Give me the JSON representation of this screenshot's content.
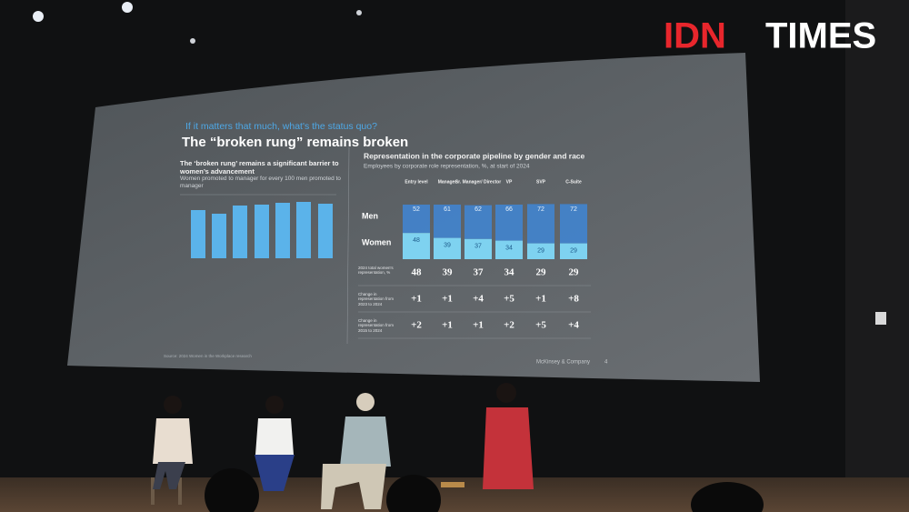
{
  "logo": {
    "brand": "IDN",
    "name": "TIMES"
  },
  "slide": {
    "kicker": "If it matters that much, what's the status quo?",
    "title": "The “broken rung” remains broken",
    "left": {
      "heading": "The ‘broken rung’ remains a significant barrier to women’s advancement",
      "subheading": "Women promoted to manager for every 100 men promoted to manager"
    },
    "right": {
      "heading": "Representation in the corporate pipeline by gender and race",
      "subheading": "Employees by corporate role representation, %, at start of 2024",
      "columns": [
        "Entry level",
        "Manager",
        "Sr. Manager/ Director",
        "VP",
        "SVP",
        "C-Suite"
      ],
      "men_label": "Men",
      "women_label": "Women",
      "men": [
        52,
        61,
        62,
        66,
        72,
        72
      ],
      "women": [
        48,
        39,
        37,
        34,
        29,
        29
      ],
      "rows": [
        {
          "label": "2024 total women's representation, %",
          "values": [
            "48",
            "39",
            "37",
            "34",
            "29",
            "29"
          ]
        },
        {
          "label": "Change in representation from 2023 to 2024",
          "values": [
            "+1",
            "+1",
            "+4",
            "+5",
            "+1",
            "+8"
          ]
        },
        {
          "label": "Change in representation from 2015 to 2024",
          "values": [
            "+2",
            "+1",
            "+1",
            "+2",
            "+5",
            "+4"
          ]
        }
      ]
    },
    "source": "Source: 2024 Women in the Workplace research",
    "footer": "McKinsey & Company",
    "page": "4"
  }
}
